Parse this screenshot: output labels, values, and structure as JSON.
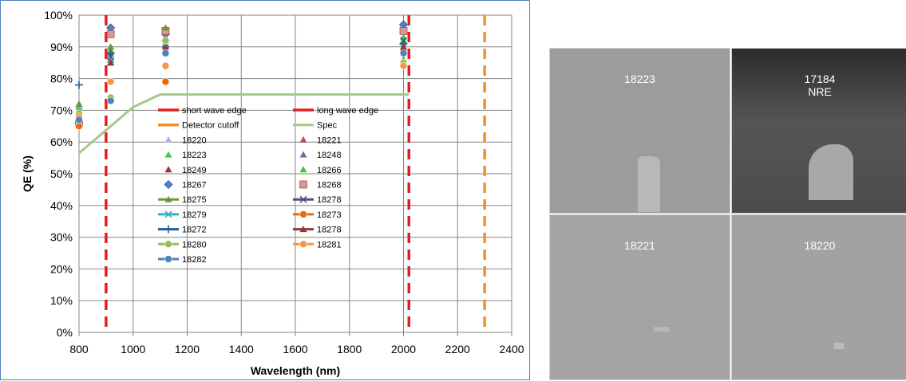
{
  "chart_data": {
    "type": "scatter",
    "xlabel": "Wavelength (nm)",
    "ylabel": "QE (%)",
    "xlim": [
      800,
      2400
    ],
    "ylim": [
      0,
      100
    ],
    "x_ticks": [
      "800",
      "1000",
      "1200",
      "1400",
      "1600",
      "1800",
      "2000",
      "2200",
      "2400"
    ],
    "y_ticks": [
      "0%",
      "10%",
      "20%",
      "30%",
      "40%",
      "50%",
      "60%",
      "70%",
      "80%",
      "90%",
      "100%"
    ],
    "grid": "both",
    "legend_position": "inside-left",
    "reference_lines": [
      {
        "name": "short wave edge",
        "x": 900,
        "color": "#e02020",
        "style": "dashed"
      },
      {
        "name": "long wave edge",
        "x": 2020,
        "color": "#e02020",
        "style": "dashed"
      },
      {
        "name": "Detector cutoff",
        "x": 2300,
        "color": "#f0902a",
        "style": "dashed"
      }
    ],
    "spec": {
      "name": "Spec",
      "color": "#a5c88a",
      "points": [
        [
          800,
          56.5
        ],
        [
          1000,
          71
        ],
        [
          1100,
          75
        ],
        [
          2020,
          75
        ]
      ]
    },
    "series": [
      {
        "name": "18220",
        "marker": "triangle",
        "color": "#a8b4d8",
        "points": [
          [
            800,
            71
          ],
          [
            917,
            87
          ],
          [
            1120,
            90
          ],
          [
            2000,
            91
          ]
        ]
      },
      {
        "name": "18221",
        "marker": "triangle",
        "color": "#c0504d",
        "points": [
          [
            800,
            68
          ],
          [
            917,
            86
          ],
          [
            1120,
            91
          ],
          [
            2000,
            90
          ]
        ]
      },
      {
        "name": "18223",
        "marker": "triangle",
        "color": "#3ecf3e",
        "points": [
          [
            800,
            72
          ],
          [
            917,
            88
          ],
          [
            1120,
            93
          ],
          [
            2000,
            92
          ]
        ]
      },
      {
        "name": "18248",
        "marker": "triangle",
        "color": "#8064a2",
        "points": [
          [
            800,
            67
          ],
          [
            917,
            85
          ],
          [
            1120,
            90
          ],
          [
            2000,
            89
          ]
        ]
      },
      {
        "name": "18249",
        "marker": "triangle",
        "color": "#943634",
        "points": [
          [
            800,
            69
          ],
          [
            917,
            86
          ],
          [
            1120,
            91
          ],
          [
            2000,
            90
          ]
        ]
      },
      {
        "name": "18266",
        "marker": "triangle",
        "color": "#32cd32",
        "points": [
          [
            800,
            70
          ],
          [
            917,
            89
          ],
          [
            1120,
            92
          ],
          [
            2000,
            93
          ]
        ]
      },
      {
        "name": "18267",
        "marker": "diamond",
        "color": "#4f81bd",
        "points": [
          [
            800,
            66
          ],
          [
            917,
            96
          ],
          [
            1120,
            94
          ],
          [
            2000,
            97
          ]
        ]
      },
      {
        "name": "18268",
        "marker": "square",
        "color": "#d99694",
        "points": [
          [
            800,
            66
          ],
          [
            917,
            94
          ],
          [
            1120,
            95
          ],
          [
            2000,
            95
          ]
        ]
      },
      {
        "name": "18275",
        "marker": "triangle-line",
        "color": "#76923c",
        "points": [
          [
            800,
            72
          ],
          [
            917,
            90
          ],
          [
            1120,
            96
          ],
          [
            2000,
            86
          ]
        ]
      },
      {
        "name": "18278",
        "marker": "x-line",
        "color": "#604a7b",
        "points": [
          [
            800,
            68
          ],
          [
            917,
            87
          ],
          [
            1120,
            89
          ],
          [
            2000,
            92
          ]
        ]
      },
      {
        "name": "18279",
        "marker": "x-line",
        "color": "#31b0c6",
        "points": [
          [
            800,
            70
          ],
          [
            917,
            86
          ],
          [
            1120,
            91
          ],
          [
            2000,
            90
          ]
        ]
      },
      {
        "name": "18273",
        "marker": "circle-line",
        "color": "#e46c0a",
        "points": [
          [
            800,
            65
          ],
          [
            917,
            79
          ],
          [
            1120,
            79
          ],
          [
            2000,
            89
          ]
        ]
      },
      {
        "name": "18272",
        "marker": "plus-line",
        "color": "#1f5c99",
        "points": [
          [
            800,
            78
          ],
          [
            917,
            88
          ],
          [
            1120,
            92
          ],
          [
            2000,
            91
          ]
        ]
      },
      {
        "name": "18278",
        "marker": "triangle-line",
        "color": "#953735",
        "points": [
          [
            800,
            67
          ],
          [
            917,
            85
          ],
          [
            1120,
            90
          ],
          [
            2000,
            90
          ]
        ]
      },
      {
        "name": "18280",
        "marker": "circle-line",
        "color": "#9bbb59",
        "points": [
          [
            800,
            69
          ],
          [
            917,
            74
          ],
          [
            1120,
            92
          ],
          [
            2000,
            85
          ]
        ]
      },
      {
        "name": "18281",
        "marker": "circle-line",
        "color": "#f79646",
        "points": [
          [
            800,
            68
          ],
          [
            917,
            79
          ],
          [
            1120,
            84
          ],
          [
            2000,
            84
          ]
        ]
      },
      {
        "name": "18282",
        "marker": "circle-line",
        "color": "#4f81bd",
        "points": [
          [
            800,
            67
          ],
          [
            917,
            73
          ],
          [
            1120,
            88
          ],
          [
            2000,
            88
          ]
        ]
      }
    ]
  },
  "images": [
    {
      "labels": [
        "18223"
      ],
      "bg": "#9c9c9c",
      "patch": "#b8b8b8"
    },
    {
      "labels": [
        "17184",
        "NRE"
      ],
      "bg": "#4a4a4a",
      "patch": "#a8a8a8"
    },
    {
      "labels": [
        "18221"
      ],
      "bg": "#a4a4a4",
      "patch": "#b6b6b6"
    },
    {
      "labels": [
        "18220"
      ],
      "bg": "#a2a2a2",
      "patch": "#bcbcbc"
    }
  ]
}
